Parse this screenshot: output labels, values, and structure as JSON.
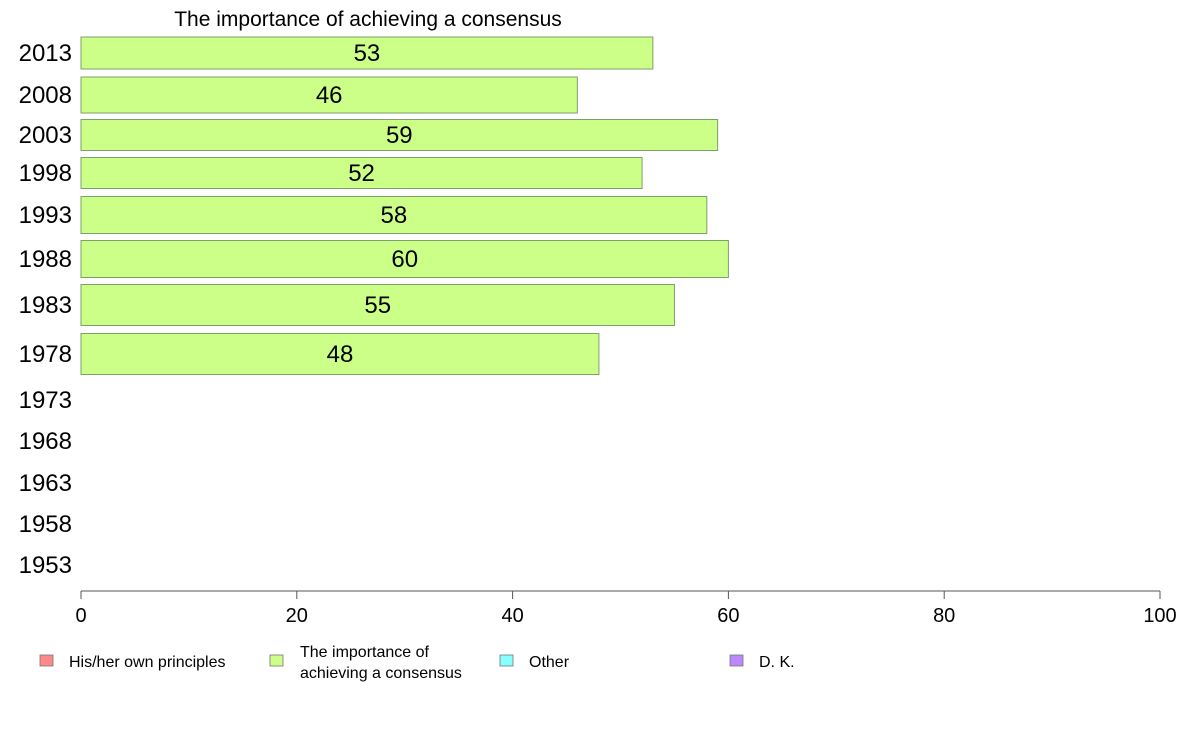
{
  "chart_data": {
    "type": "bar",
    "orientation": "horizontal",
    "title": "The importance of achieving a consensus",
    "categories": [
      "2013",
      "2008",
      "2003",
      "1998",
      "1993",
      "1988",
      "1983",
      "1978",
      "1973",
      "1968",
      "1963",
      "1958",
      "1953"
    ],
    "series": [
      {
        "name": "The importance of achieving a consensus",
        "color": "#ccff88",
        "values": [
          53,
          46,
          59,
          52,
          58,
          60,
          55,
          48,
          null,
          null,
          null,
          null,
          null
        ],
        "value_labels": [
          "53",
          "46",
          "59",
          "52",
          "58",
          "60",
          "55",
          "48",
          "",
          "",
          "",
          "",
          ""
        ]
      }
    ],
    "xlim": [
      0,
      100
    ],
    "xticks": [
      0,
      20,
      40,
      60,
      80,
      100
    ],
    "xtick_labels": [
      "0",
      "20",
      "40",
      "60",
      "80",
      "100"
    ],
    "grid": false,
    "legend": {
      "position": "bottom",
      "entries": [
        {
          "lines": [
            "His/her own principles"
          ],
          "color": "#ff8888"
        },
        {
          "lines": [
            "The importance of",
            "achieving a consensus"
          ],
          "color": "#ccff88"
        },
        {
          "lines": [
            "Other"
          ],
          "color": "#88ffff"
        },
        {
          "lines": [
            "D. K."
          ],
          "color": "#bb88ff"
        }
      ]
    }
  }
}
